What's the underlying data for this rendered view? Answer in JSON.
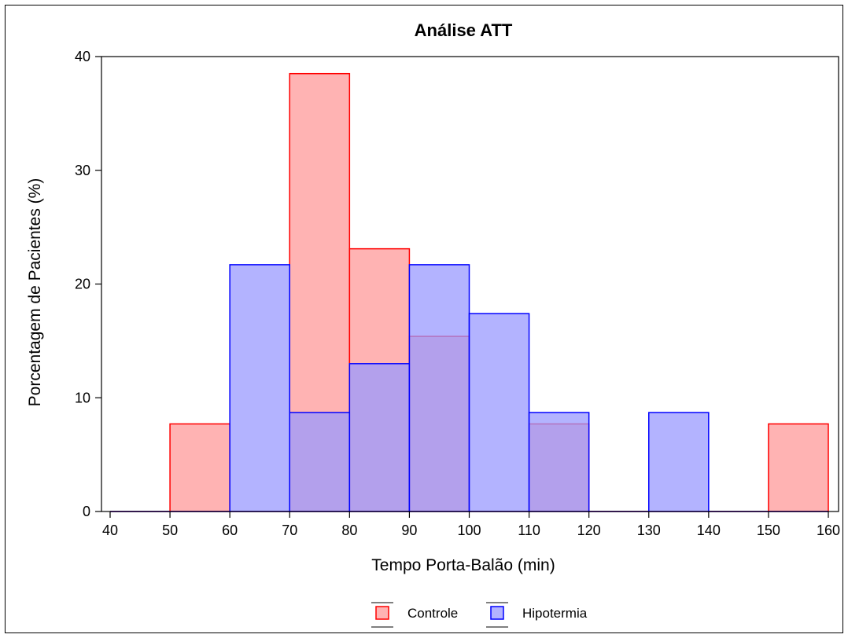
{
  "chart_data": {
    "type": "bar",
    "title": "Análise ATT",
    "xlabel": "Tempo Porta-Balão (min)",
    "ylabel": "Porcentagem de Pacientes (%)",
    "xlim": [
      40,
      160
    ],
    "ylim": [
      0,
      40
    ],
    "x_ticks": [
      40,
      50,
      60,
      70,
      80,
      90,
      100,
      110,
      120,
      130,
      140,
      150,
      160
    ],
    "y_ticks": [
      0,
      10,
      20,
      30,
      40
    ],
    "bin_width": 10,
    "bin_starts": [
      40,
      50,
      60,
      70,
      80,
      90,
      100,
      110,
      120,
      130,
      140,
      150
    ],
    "series": [
      {
        "name": "Controle",
        "color": "#ff0000",
        "fill": "#ff9999",
        "values": [
          0,
          7.7,
          0,
          38.5,
          23.1,
          15.4,
          0,
          7.7,
          0,
          0,
          0,
          7.7
        ]
      },
      {
        "name": "Hipotermia",
        "color": "#0000ff",
        "fill": "#9999ff",
        "values": [
          0,
          0,
          21.7,
          8.7,
          13.0,
          21.7,
          17.4,
          8.7,
          0,
          8.7,
          0,
          0
        ]
      }
    ],
    "legend_position": "bottom-center",
    "grid": false
  }
}
